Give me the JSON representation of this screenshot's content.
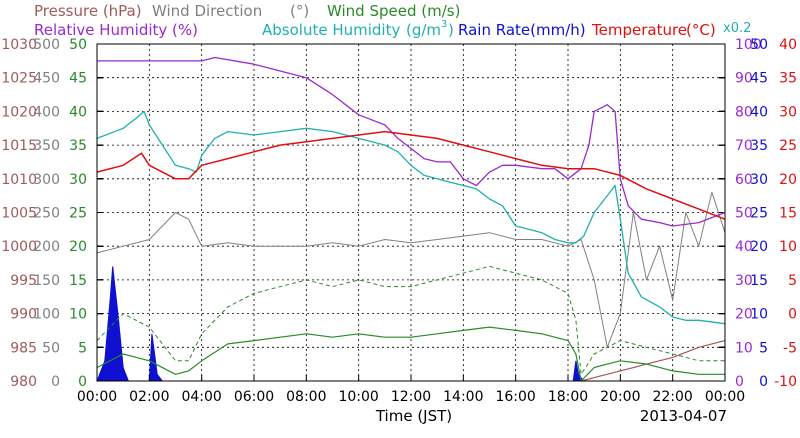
{
  "chart_data": {
    "type": "line",
    "xlabel": "Time (JST)",
    "date_label": "2013-04-07",
    "x_ticks": [
      "00:00",
      "02:00",
      "04:00",
      "06:00",
      "08:00",
      "10:00",
      "12:00",
      "14:00",
      "16:00",
      "18:00",
      "20:00",
      "22:00",
      "00:00"
    ],
    "xlim": [
      0,
      24
    ],
    "grid": true,
    "axis_titles": {
      "pressure": "Pressure (hPa)",
      "wind_direction": "Wind Direction",
      "wind_direction_unit": "(°)",
      "wind_speed": "Wind Speed (m/s)",
      "relative_humidity": "Relative Humidity (%)",
      "absolute_humidity": "Absolute Humidity",
      "absolute_humidity_unit": "(g/m",
      "absolute_humidity_sup": "3",
      "absolute_humidity_close": ")",
      "rain_rate": "Rain Rate(mm/h)",
      "temperature": "Temperature",
      "temperature_unit": "(°C)",
      "abs_humidity_scale": "x0.2"
    },
    "axes": [
      {
        "key": "pressure",
        "color": "#a05a5a",
        "ylim": [
          980,
          1030
        ],
        "ticks": [
          "980",
          "985",
          "990",
          "995",
          "1000",
          "1005",
          "1010",
          "1015",
          "1020",
          "1025",
          "1030"
        ]
      },
      {
        "key": "wind_direction",
        "color": "#808080",
        "ylim": [
          0,
          500
        ],
        "ticks": [
          "0",
          "50",
          "100",
          "150",
          "200",
          "250",
          "300",
          "350",
          "400",
          "450",
          "500"
        ]
      },
      {
        "key": "wind_speed",
        "color": "#2a8a2a",
        "ylim": [
          0,
          50
        ],
        "ticks": [
          "0",
          "5",
          "10",
          "15",
          "20",
          "25",
          "30",
          "35",
          "40",
          "45",
          "50"
        ]
      },
      {
        "key": "relative_humidity",
        "color": "#9a2ad0",
        "ylim": [
          0,
          100
        ],
        "ticks": [
          "0",
          "10",
          "20",
          "30",
          "40",
          "50",
          "60",
          "70",
          "80",
          "90",
          "100"
        ]
      },
      {
        "key": "rain_rate",
        "color": "#1010d0",
        "ylim": [
          0,
          50
        ],
        "ticks": [
          "0",
          "5",
          "10",
          "15",
          "20",
          "25",
          "30",
          "35",
          "40",
          "45",
          "50"
        ]
      },
      {
        "key": "temperature",
        "color": "#e01010",
        "ylim": [
          -10,
          40
        ],
        "ticks": [
          "-10",
          "-5",
          "0",
          "5",
          "10",
          "15",
          "20",
          "25",
          "30",
          "35",
          "40"
        ]
      }
    ],
    "series": [
      {
        "name": "Relative Humidity",
        "axis": "relative_humidity",
        "color": "#9a2ad0",
        "x": [
          0,
          2,
          2.3,
          4,
          4.5,
          6,
          7,
          8,
          9,
          10,
          11,
          11.5,
          12,
          12.5,
          13,
          13.5,
          14,
          14.5,
          15,
          15.5,
          16,
          17,
          17.5,
          18,
          18.5,
          18.8,
          19,
          19.5,
          19.8,
          20,
          20.3,
          20.8,
          21.5,
          22,
          23,
          24
        ],
        "y": [
          95,
          95,
          95,
          95,
          96,
          94,
          92,
          90,
          85,
          79,
          76,
          72,
          69,
          66,
          65,
          65,
          60,
          58,
          62,
          64,
          64,
          63,
          63,
          60,
          63,
          70,
          80,
          82,
          80,
          60,
          52,
          48,
          47,
          46,
          47,
          50
        ]
      },
      {
        "name": "Absolute Humidity x0.2",
        "axis": "relative_humidity",
        "color": "#20b0b0",
        "x": [
          0,
          1,
          1.5,
          1.8,
          2,
          2.5,
          3,
          3.5,
          3.8,
          4,
          4.5,
          5,
          6,
          7,
          8,
          9,
          10,
          10.5,
          11,
          11.5,
          12,
          12.5,
          13,
          13.5,
          14,
          14.5,
          15,
          15.5,
          16,
          16.5,
          17,
          17.5,
          18,
          18.3,
          18.6,
          19,
          19.5,
          19.8,
          20,
          20.3,
          20.8,
          21.5,
          22,
          22.5,
          23,
          24
        ],
        "y": [
          72,
          75,
          78,
          80,
          76,
          70,
          64,
          63,
          62,
          67,
          72,
          74,
          73,
          74,
          75,
          74,
          72,
          71,
          70,
          68,
          64,
          61,
          60,
          59,
          58,
          57,
          54,
          52,
          46,
          45,
          44,
          42,
          41,
          41,
          43,
          50,
          55,
          58,
          48,
          32,
          25,
          22,
          19,
          18,
          18,
          17
        ]
      },
      {
        "name": "Temperature",
        "axis": "temperature",
        "color": "#e01010",
        "x": [
          0,
          1,
          1.7,
          2,
          2.5,
          3,
          3.5,
          4,
          5,
          6,
          7,
          8,
          9,
          10,
          11,
          12,
          13,
          14,
          15,
          16,
          17,
          18,
          19,
          20,
          21,
          22,
          23,
          24
        ],
        "y": [
          21,
          22,
          23.8,
          22,
          21,
          20,
          20,
          22,
          23,
          24,
          25,
          25.5,
          26,
          26.5,
          27,
          26.5,
          26,
          25,
          24,
          23,
          22,
          21.5,
          21.5,
          20.5,
          18.5,
          17,
          15.5,
          14
        ]
      },
      {
        "name": "Wind Direction",
        "axis": "wind_direction",
        "color": "#808080",
        "x": [
          0,
          1,
          2,
          3,
          3.5,
          4,
          5,
          6,
          7,
          8,
          9,
          10,
          11,
          12,
          13,
          14,
          15,
          16,
          17,
          18,
          18.5,
          19,
          19.5,
          20,
          20.5,
          21,
          21.5,
          22,
          22.5,
          23,
          23.5,
          24
        ],
        "y": [
          190,
          200,
          210,
          250,
          240,
          200,
          205,
          200,
          200,
          200,
          205,
          200,
          210,
          205,
          210,
          215,
          220,
          210,
          210,
          200,
          210,
          150,
          50,
          100,
          250,
          150,
          200,
          120,
          250,
          200,
          280,
          220
        ]
      },
      {
        "name": "Wind Speed",
        "axis": "wind_speed",
        "color": "#2a8a2a",
        "x": [
          0,
          1,
          2,
          3,
          3.5,
          4,
          5,
          6,
          7,
          8,
          9,
          10,
          11,
          12,
          13,
          14,
          15,
          16,
          17,
          18,
          18.3,
          18.5,
          19,
          19.5,
          20,
          21,
          22,
          23,
          24
        ],
        "y": [
          2,
          4,
          3,
          1,
          1.5,
          3,
          5.5,
          6,
          6.5,
          7,
          6.5,
          7,
          6.5,
          6.5,
          7,
          7.5,
          8,
          7.5,
          7,
          6,
          4,
          0,
          2,
          2.5,
          3,
          2.5,
          1.5,
          1,
          1
        ]
      },
      {
        "name": "Wind Speed Gust",
        "axis": "wind_speed",
        "color": "#2a8a2a",
        "x": [
          0,
          1,
          2,
          3,
          3.5,
          4,
          5,
          6,
          7,
          8,
          9,
          10,
          11,
          12,
          13,
          14,
          15,
          16,
          17,
          18,
          18.3,
          18.5,
          19,
          19.5,
          20,
          21,
          22,
          23,
          24
        ],
        "y": [
          6,
          10,
          8,
          3,
          3,
          7,
          11,
          13,
          14,
          15,
          14,
          15,
          14,
          14,
          15,
          16,
          17,
          16,
          15,
          13,
          9,
          1,
          4,
          5,
          6,
          5,
          4,
          3,
          3
        ]
      },
      {
        "name": "Pressure",
        "axis": "pressure",
        "color": "#a05a5a",
        "x": [
          18.5,
          19,
          20,
          21,
          22,
          23,
          24
        ],
        "y": [
          980,
          980.5,
          981.5,
          982.5,
          983.5,
          985,
          986
        ]
      },
      {
        "name": "Rain Rate",
        "axis": "rain_rate",
        "color": "#1010d0",
        "x": [
          0,
          0.3,
          0.5,
          0.6,
          0.8,
          1,
          1.2,
          1.5,
          2,
          2.1,
          2.2,
          2.3,
          2.5,
          18.2,
          18.3,
          18.4,
          18.6,
          24
        ],
        "y": [
          0,
          3,
          12,
          17,
          10,
          2,
          0,
          0,
          0,
          7,
          4,
          1,
          0,
          0,
          3,
          1,
          0,
          0
        ]
      }
    ]
  }
}
